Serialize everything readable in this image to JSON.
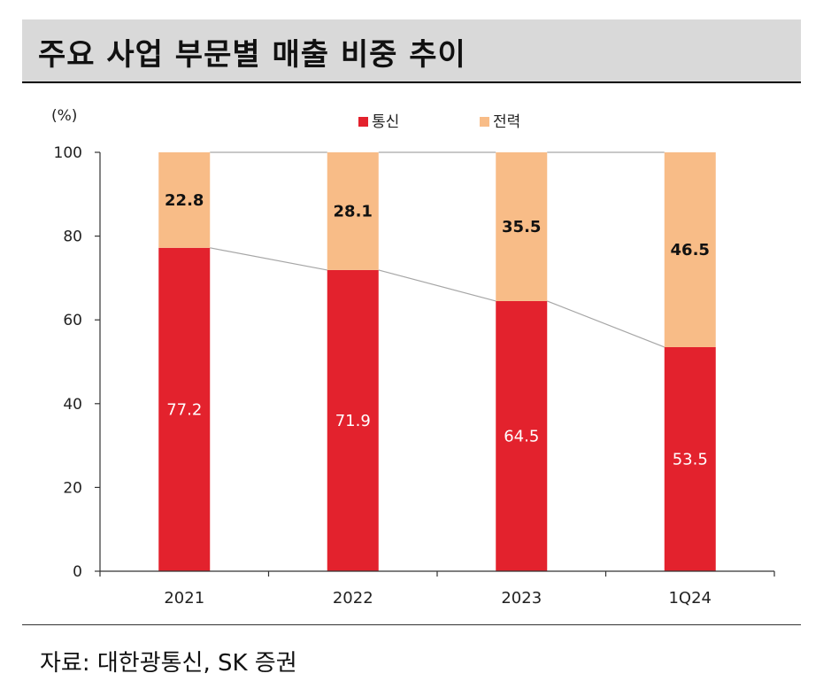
{
  "header": {
    "title": "주요 사업 부문별 매출 비중 추이"
  },
  "footer": {
    "source": "자료: 대한광통신, SK 증권"
  },
  "colors": {
    "telecom": "#e3222d",
    "power": "#f8bc87",
    "connector": "#a6a6a6",
    "axis": "#333333"
  },
  "chart_data": {
    "type": "bar",
    "stacked": true,
    "title": "주요 사업 부문별 매출 비중 추이",
    "ylabel": "(%)",
    "xlabel": "",
    "ylim": [
      0,
      100
    ],
    "yticks": [
      0,
      20,
      40,
      60,
      80,
      100
    ],
    "categories": [
      "2021",
      "2022",
      "2023",
      "1Q24"
    ],
    "series": [
      {
        "name": "통신",
        "values": [
          77.2,
          71.9,
          64.5,
          53.5
        ],
        "labels": [
          "77.2",
          "71.9",
          "64.5",
          "53.5"
        ]
      },
      {
        "name": "전력",
        "values": [
          22.8,
          28.1,
          35.5,
          46.5
        ],
        "labels": [
          "22.8",
          "28.1",
          "35.5",
          "46.5"
        ]
      }
    ],
    "legend": "top-center",
    "connector_lines": true,
    "grid": false
  }
}
